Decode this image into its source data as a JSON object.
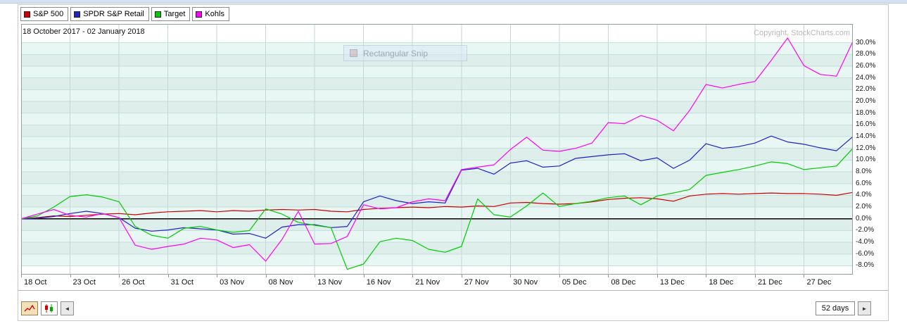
{
  "header": {
    "date_range": "18 October 2017 - 02 January 2018",
    "copyright": "Copyright, StockCharts.com"
  },
  "legend": [
    {
      "label": "S&P 500",
      "color": "#cc0000"
    },
    {
      "label": "SPDR S&P Retail",
      "color": "#2121c8"
    },
    {
      "label": "Target",
      "color": "#00cc00"
    },
    {
      "label": "Kohls",
      "color": "#ff00ff"
    }
  ],
  "overlay": {
    "snip_label": "Rectangular Snip"
  },
  "toolbar": {
    "range_value": "52 days",
    "prev_label": "◄",
    "next_label": "►"
  },
  "chart_data": {
    "type": "line",
    "title": "",
    "date_range": "18 October 2017 - 02 January 2018",
    "x_labels": [
      "18 Oct",
      "23 Oct",
      "26 Oct",
      "31 Oct",
      "03 Nov",
      "08 Nov",
      "13 Nov",
      "16 Nov",
      "21 Nov",
      "27 Nov",
      "30 Nov",
      "05 Dec",
      "08 Dec",
      "13 Dec",
      "18 Dec",
      "21 Dec",
      "27 Dec"
    ],
    "label_every": 3,
    "n_points": 52,
    "ylim": [
      -9.5,
      33.2
    ],
    "y_ticks": [
      30,
      28,
      26,
      24,
      22,
      20,
      18,
      16,
      14,
      12,
      10,
      8,
      6,
      4,
      2,
      0,
      -2,
      -4,
      -6,
      -8
    ],
    "y_unit": "%",
    "grid": true,
    "zero_line": true,
    "legend_position": "top-left",
    "series": [
      {
        "name": "S&P 500",
        "color": "#cc0000",
        "values": [
          0.0,
          0.2,
          0.5,
          0.4,
          0.6,
          0.8,
          0.9,
          0.7,
          1.0,
          1.2,
          1.3,
          1.4,
          1.2,
          1.4,
          1.3,
          1.5,
          1.6,
          1.5,
          1.6,
          1.3,
          1.2,
          1.6,
          1.8,
          1.9,
          2.0,
          1.9,
          2.1,
          2.0,
          2.2,
          2.1,
          2.7,
          2.8,
          2.6,
          2.5,
          2.6,
          2.9,
          3.3,
          3.5,
          3.6,
          3.4,
          3.0,
          3.9,
          4.2,
          4.3,
          4.2,
          4.3,
          4.4,
          4.3,
          4.3,
          4.2,
          4.0,
          4.5
        ]
      },
      {
        "name": "SPDR S&P Retail",
        "color": "#2121c8",
        "values": [
          0.0,
          0.1,
          0.4,
          0.9,
          1.3,
          0.9,
          0.2,
          -1.6,
          -2.1,
          -1.9,
          -1.5,
          -1.7,
          -1.9,
          -2.6,
          -2.5,
          -3.3,
          -1.4,
          -1.0,
          -1.0,
          -1.5,
          -1.3,
          2.9,
          3.9,
          3.1,
          2.6,
          2.9,
          2.7,
          8.3,
          8.6,
          7.6,
          9.5,
          9.9,
          8.8,
          9.0,
          10.3,
          10.6,
          10.9,
          11.1,
          9.9,
          10.4,
          8.6,
          10.0,
          12.8,
          12.0,
          12.3,
          12.9,
          14.1,
          13.1,
          12.7,
          12.1,
          11.6,
          14.0
        ]
      },
      {
        "name": "Target",
        "color": "#00cc00",
        "values": [
          0.0,
          0.5,
          2.0,
          3.8,
          4.1,
          3.7,
          2.9,
          -1.3,
          -2.8,
          -3.3,
          -1.6,
          -1.3,
          -1.9,
          -2.3,
          -2.0,
          1.7,
          0.8,
          -0.6,
          -1.1,
          -1.5,
          -8.6,
          -7.7,
          -3.9,
          -3.3,
          -3.7,
          -5.2,
          -5.7,
          -4.7,
          3.4,
          0.7,
          0.3,
          2.2,
          4.4,
          2.1,
          2.6,
          3.0,
          3.6,
          3.9,
          2.4,
          3.9,
          4.4,
          5.0,
          7.4,
          7.9,
          8.4,
          9.0,
          9.7,
          9.4,
          8.4,
          8.7,
          9.0,
          12.0
        ]
      },
      {
        "name": "Kohls",
        "color": "#ff00ff",
        "values": [
          0.0,
          0.8,
          1.6,
          0.6,
          0.3,
          0.9,
          0.2,
          -4.5,
          -5.2,
          -4.7,
          -4.3,
          -3.3,
          -3.6,
          -4.9,
          -4.4,
          -7.2,
          -3.5,
          1.3,
          -4.3,
          -4.2,
          -3.0,
          2.4,
          1.7,
          1.9,
          2.9,
          3.4,
          3.1,
          8.4,
          8.8,
          9.2,
          11.8,
          13.9,
          11.7,
          11.5,
          12.0,
          12.9,
          16.4,
          16.2,
          17.6,
          16.8,
          15.0,
          18.5,
          22.9,
          22.3,
          22.9,
          23.4,
          27.0,
          30.8,
          26.1,
          24.6,
          24.3,
          30.2
        ]
      }
    ]
  }
}
